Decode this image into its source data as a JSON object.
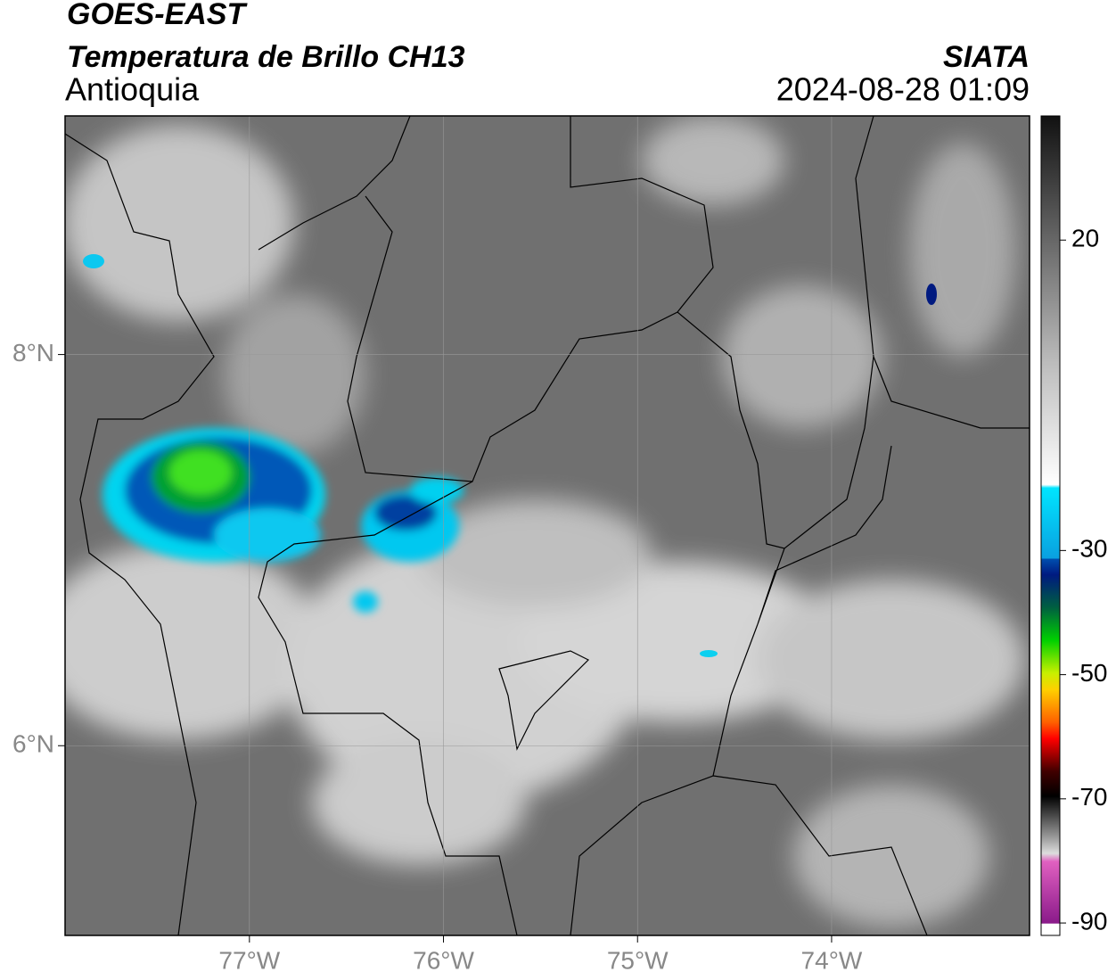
{
  "header": {
    "title": "GOES-EAST",
    "subtitle": "Temperatura de Brillo CH13",
    "region": "Antioquia",
    "source": "SIATA",
    "datetime": "2024-08-28 01:09"
  },
  "map": {
    "lonlim": [
      -77.95,
      -72.98
    ],
    "latlim": [
      5.03,
      9.22
    ],
    "lat_ticks": [
      {
        "value": 8,
        "label": "8°N"
      },
      {
        "value": 6,
        "label": "6°N"
      }
    ],
    "lon_ticks": [
      {
        "value": -77,
        "label": "77°W"
      },
      {
        "value": -76,
        "label": "76°W"
      },
      {
        "value": -75,
        "label": "75°W"
      },
      {
        "value": -74,
        "label": "74°W"
      }
    ],
    "grid": true
  },
  "colorbar": {
    "lim": [
      -92,
      40
    ],
    "ticks": [
      20,
      -30,
      -50,
      -70,
      -90
    ]
  }
}
